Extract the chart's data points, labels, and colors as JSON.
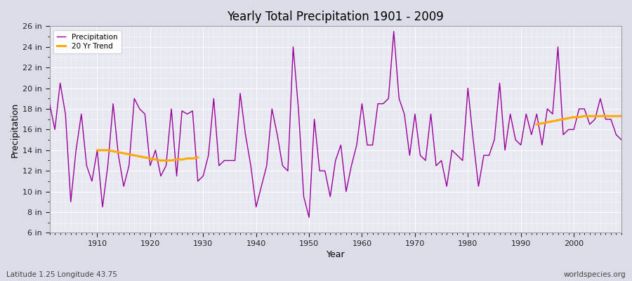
{
  "title": "Yearly Total Precipitation 1901 - 2009",
  "xlabel": "Year",
  "ylabel": "Precipitation",
  "subtitle": "Latitude 1.25 Longitude 43.75",
  "watermark": "worldspecies.org",
  "bg_color": "#dcdce8",
  "plot_bg_color": "#e8e8f2",
  "grid_color": "#ffffff",
  "line_color": "#990099",
  "trend_color": "#ffaa00",
  "ylim": [
    6,
    26
  ],
  "yticks": [
    6,
    8,
    10,
    12,
    14,
    16,
    18,
    20,
    22,
    24,
    26
  ],
  "ytick_labels": [
    "6 in",
    "8 in",
    "10 in",
    "12 in",
    "14 in",
    "16 in",
    "18 in",
    "20 in",
    "22 in",
    "24 in",
    "26 in"
  ],
  "years": [
    1901,
    1902,
    1903,
    1904,
    1905,
    1906,
    1907,
    1908,
    1909,
    1910,
    1911,
    1912,
    1913,
    1914,
    1915,
    1916,
    1917,
    1918,
    1919,
    1920,
    1921,
    1922,
    1923,
    1924,
    1925,
    1926,
    1927,
    1928,
    1929,
    1930,
    1931,
    1932,
    1933,
    1934,
    1935,
    1936,
    1937,
    1938,
    1939,
    1940,
    1941,
    1942,
    1943,
    1944,
    1945,
    1946,
    1947,
    1948,
    1949,
    1950,
    1951,
    1952,
    1953,
    1954,
    1955,
    1956,
    1957,
    1958,
    1959,
    1960,
    1961,
    1962,
    1963,
    1964,
    1965,
    1966,
    1967,
    1968,
    1969,
    1970,
    1971,
    1972,
    1973,
    1974,
    1975,
    1976,
    1977,
    1978,
    1979,
    1980,
    1981,
    1982,
    1983,
    1984,
    1985,
    1986,
    1987,
    1988,
    1989,
    1990,
    1991,
    1992,
    1993,
    1994,
    1995,
    1996,
    1997,
    1998,
    1999,
    2000,
    2001,
    2002,
    2003,
    2004,
    2005,
    2006,
    2007,
    2008,
    2009
  ],
  "precip": [
    18.5,
    16.0,
    20.5,
    17.5,
    9.0,
    14.0,
    17.5,
    12.5,
    11.0,
    14.0,
    8.5,
    12.5,
    18.5,
    13.5,
    10.5,
    12.5,
    19.0,
    18.0,
    17.5,
    12.5,
    14.0,
    11.5,
    12.5,
    18.0,
    11.5,
    17.8,
    17.5,
    17.8,
    11.0,
    11.5,
    13.5,
    19.0,
    12.5,
    13.0,
    13.0,
    13.0,
    19.5,
    15.5,
    12.5,
    8.5,
    10.5,
    12.5,
    18.0,
    15.5,
    12.5,
    12.0,
    24.0,
    18.0,
    9.5,
    7.5,
    17.0,
    12.0,
    12.0,
    9.5,
    13.0,
    14.5,
    10.0,
    12.5,
    14.5,
    18.5,
    14.5,
    14.5,
    18.5,
    18.5,
    19.0,
    25.5,
    19.0,
    17.5,
    13.5,
    17.5,
    13.5,
    13.0,
    17.5,
    12.5,
    13.0,
    10.5,
    14.0,
    13.5,
    13.0,
    20.0,
    15.0,
    10.5,
    13.5,
    13.5,
    15.0,
    20.5,
    14.0,
    17.5,
    15.0,
    14.5,
    17.5,
    15.5,
    17.5,
    14.5,
    18.0,
    17.5,
    24.0,
    15.5,
    16.0,
    16.0,
    18.0,
    18.0,
    16.5,
    17.0,
    19.0,
    17.0,
    17.0,
    15.5,
    15.0
  ],
  "trend_segment1_years": [
    1910,
    1911,
    1912,
    1913,
    1914,
    1915,
    1916,
    1917,
    1918,
    1919,
    1920,
    1921,
    1922,
    1923,
    1924,
    1925,
    1926,
    1927,
    1928,
    1929
  ],
  "trend_segment1_values": [
    14.0,
    14.0,
    14.0,
    13.9,
    13.8,
    13.7,
    13.6,
    13.5,
    13.4,
    13.3,
    13.2,
    13.1,
    13.0,
    13.0,
    13.0,
    13.1,
    13.1,
    13.2,
    13.2,
    13.3
  ],
  "trend_segment2_years": [
    1993,
    1994,
    1995,
    1996,
    1997,
    1998,
    1999,
    2000,
    2001,
    2002,
    2003,
    2004,
    2005,
    2006,
    2007,
    2008,
    2009
  ],
  "trend_segment2_values": [
    16.5,
    16.6,
    16.7,
    16.8,
    16.9,
    17.0,
    17.1,
    17.2,
    17.2,
    17.3,
    17.3,
    17.3,
    17.3,
    17.3,
    17.3,
    17.3,
    17.3
  ]
}
